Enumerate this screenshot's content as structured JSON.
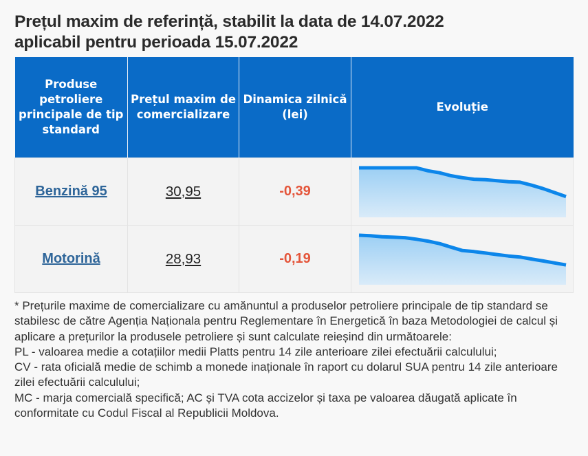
{
  "page": {
    "title_line1": "Prețul maxim de referință, stabilit la data de 14.07.2022",
    "title_line2": "aplicabil pentru perioada 15.07.2022"
  },
  "table": {
    "headers": [
      "Produse petroliere principale de tip standard",
      "Prețul maxim de comercializare",
      "Dinamica zilnică (lei)",
      "Evoluție"
    ],
    "rows": [
      {
        "product": "Benzină 95",
        "price": "30,95",
        "daily_change": "-0,39",
        "trend": [
          1.0,
          1.0,
          1.0,
          1.0,
          1.0,
          1.0,
          0.94,
          0.9,
          0.84,
          0.8,
          0.77,
          0.76,
          0.74,
          0.72,
          0.71,
          0.65,
          0.58,
          0.5,
          0.42
        ]
      },
      {
        "product": "Motorină",
        "price": "28,93",
        "daily_change": "-0,19",
        "trend": [
          1.0,
          0.99,
          0.97,
          0.96,
          0.95,
          0.92,
          0.88,
          0.83,
          0.76,
          0.69,
          0.67,
          0.64,
          0.61,
          0.58,
          0.56,
          0.52,
          0.48,
          0.44,
          0.4
        ]
      }
    ]
  },
  "colors": {
    "header_bg": "#0a6bc7",
    "link": "#2e6599",
    "negative": "#e4553a",
    "sparkline": "#0c86ea"
  },
  "notes": [
    "* Prețurile maxime de comercializare cu amănuntul a produselor petroliere principale de tip standard se stabilesc de către Agenția Naționala pentru Reglementare în Energetică în baza Metodologiei de calcul și aplicare a prețurilor la produsele petroliere și sunt calculate reieșind din următoarele:",
    "PL - valoarea medie a cotațiilor medii Platts pentru 14 zile anterioare zilei efectuării calculului;",
    "CV - rata oficială medie de schimb a monede inaționale în raport cu dolarul SUA pentru 14 zile anterioare zilei efectuării calculului;",
    "MC - marja comercială specifică; AC și TVA cota accizelor și taxa pe valoarea dăugată aplicate în conformitate cu Codul Fiscal al Republicii Moldova."
  ]
}
